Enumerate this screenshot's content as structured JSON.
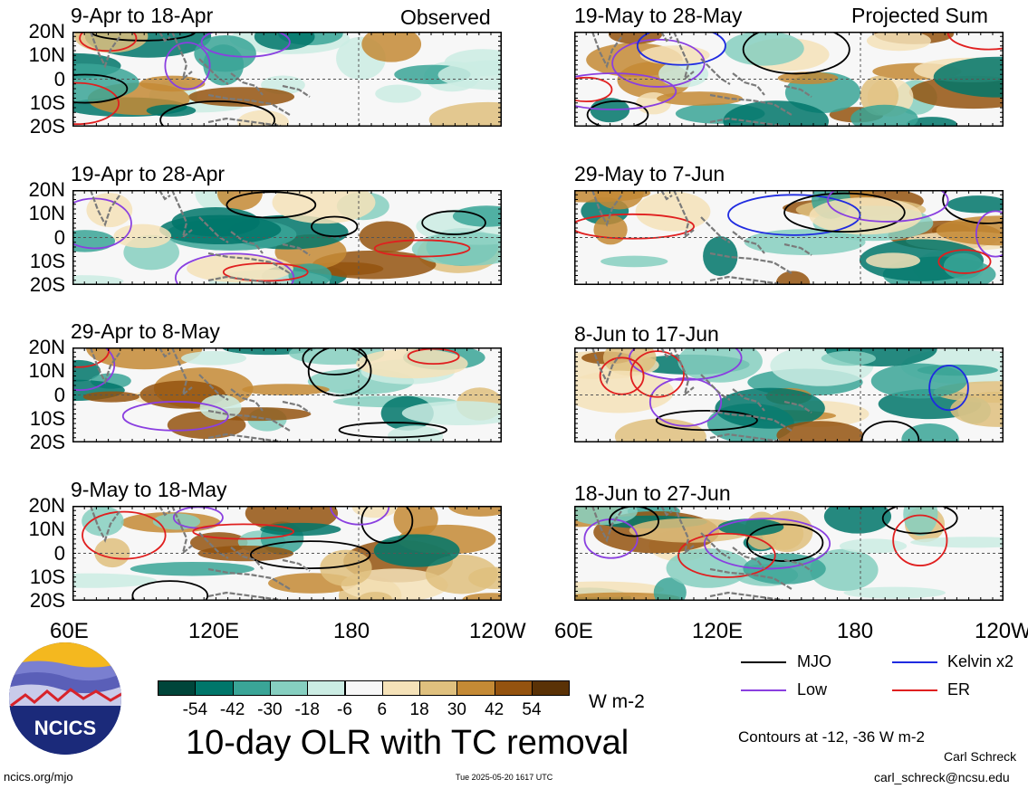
{
  "panels": [
    {
      "title": "9-Apr to 18-Apr",
      "tag": "Observed"
    },
    {
      "title": "19-Apr to 28-Apr",
      "tag": ""
    },
    {
      "title": "29-Apr to 8-May",
      "tag": ""
    },
    {
      "title": "9-May to 18-May",
      "tag": ""
    },
    {
      "title": "19-May to 28-May",
      "tag": "Projected Sum"
    },
    {
      "title": "29-May to 7-Jun",
      "tag": ""
    },
    {
      "title": "8-Jun to 17-Jun",
      "tag": ""
    },
    {
      "title": "18-Jun to 27-Jun",
      "tag": ""
    }
  ],
  "lat_labels": [
    "20N",
    "10N",
    "0",
    "10S",
    "20S"
  ],
  "lon_labels_left": [
    "60E",
    "120E",
    "180",
    "120W"
  ],
  "lon_labels_right": [
    "60E",
    "120E",
    "180",
    "120W"
  ],
  "colorbar": {
    "levels": [
      "-54",
      "-42",
      "-30",
      "-18",
      "-6",
      "6",
      "18",
      "30",
      "42",
      "54"
    ],
    "colors": [
      "#00453a",
      "#00766a",
      "#3aa597",
      "#86cfc0",
      "#cbece3",
      "#f7f7f7",
      "#f5e2b8",
      "#dfc07e",
      "#c48a35",
      "#94530f",
      "#5a3206"
    ],
    "unit": "W m-2"
  },
  "legend": {
    "mjo": "MJO",
    "kelvin": "Kelvin x2",
    "low": "Low",
    "er": "ER",
    "colors": {
      "mjo": "#000000",
      "kelvin": "#1f2be0",
      "low": "#8a3fe0",
      "er": "#e01f1f"
    }
  },
  "main_title": "10-day OLR with TC removal",
  "contour_note": "Contours at -12, -36 W m-2",
  "author": "Carl Schreck",
  "email": "carl_schreck@ncsu.edu",
  "url": "ncics.org/mjo",
  "timestamp": "Tue 2025-05-20 1617 UTC",
  "logo_text": "NCICS"
}
